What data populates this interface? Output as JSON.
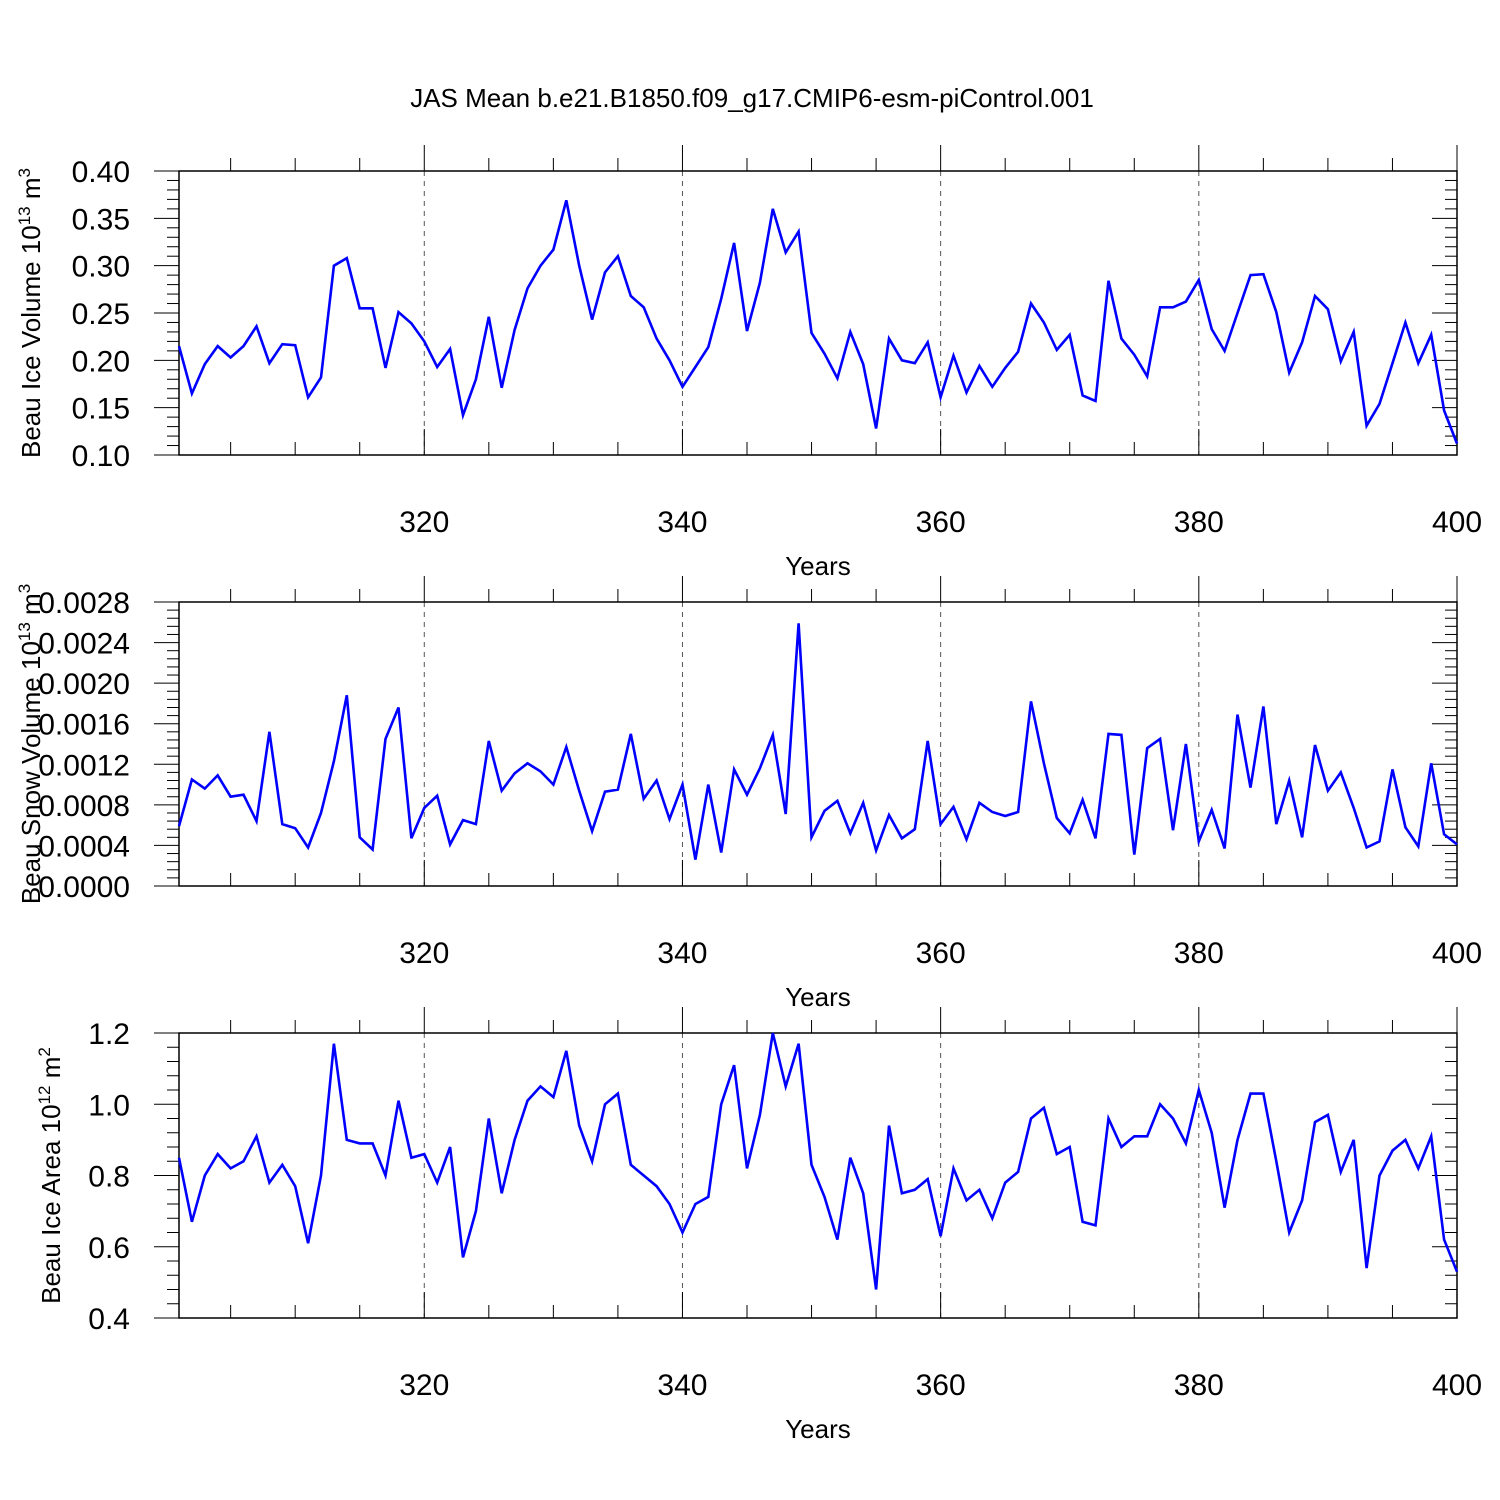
{
  "figure": {
    "title": "JAS Mean b.e21.B1850.f09_g17.CMIP6-esm-piControl.001",
    "line_color": "#0000ff",
    "grid_color": "#000000"
  },
  "chart_data": [
    {
      "type": "line",
      "title": "",
      "xlabel": "Years",
      "ylabel_main": "Beau Ice Volume 10",
      "ylabel_exp": "13",
      "ylabel_unit": "m",
      "ylabel_unit_exp": "3",
      "xlim": [
        301,
        400
      ],
      "ylim": [
        0.1,
        0.4
      ],
      "xticks": [
        320,
        340,
        360,
        380,
        400
      ],
      "yticks": [
        "0.10",
        "0.15",
        "0.20",
        "0.25",
        "0.30",
        "0.35",
        "0.40"
      ],
      "grid": "vertical dashed at major x ticks",
      "x": [
        301,
        302,
        303,
        304,
        305,
        306,
        307,
        308,
        309,
        310,
        311,
        312,
        313,
        314,
        315,
        316,
        317,
        318,
        319,
        320,
        321,
        322,
        323,
        324,
        325,
        326,
        327,
        328,
        329,
        330,
        331,
        332,
        333,
        334,
        335,
        336,
        337,
        338,
        339,
        340,
        341,
        342,
        343,
        344,
        345,
        346,
        347,
        348,
        349,
        350,
        351,
        352,
        353,
        354,
        355,
        356,
        357,
        358,
        359,
        360,
        361,
        362,
        363,
        364,
        365,
        366,
        367,
        368,
        369,
        370,
        371,
        372,
        373,
        374,
        375,
        376,
        377,
        378,
        379,
        380,
        381,
        382,
        383,
        384,
        385,
        386,
        387,
        388,
        389,
        390,
        391,
        392,
        393,
        394,
        395,
        396,
        397,
        398,
        399,
        400
      ],
      "series": [
        {
          "values": [
            0.215,
            0.165,
            0.196,
            0.215,
            0.203,
            0.215,
            0.236,
            0.197,
            0.217,
            0.216,
            0.161,
            0.182,
            0.3,
            0.308,
            0.255,
            0.255,
            0.192,
            0.251,
            0.239,
            0.22,
            0.193,
            0.212,
            0.142,
            0.18,
            0.246,
            0.171,
            0.232,
            0.276,
            0.3,
            0.317,
            0.369,
            0.3,
            0.243,
            0.293,
            0.31,
            0.268,
            0.256,
            0.223,
            0.2,
            0.172,
            0.193,
            0.214,
            0.265,
            0.324,
            0.231,
            0.282,
            0.36,
            0.314,
            0.336,
            0.229,
            0.207,
            0.181,
            0.23,
            0.196,
            0.128,
            0.223,
            0.2,
            0.197,
            0.219,
            0.161,
            0.205,
            0.166,
            0.194,
            0.172,
            0.192,
            0.209,
            0.26,
            0.24,
            0.211,
            0.227,
            0.163,
            0.157,
            0.284,
            0.223,
            0.206,
            0.183,
            0.256,
            0.256,
            0.262,
            0.285,
            0.233,
            0.21,
            0.25,
            0.29,
            0.291,
            0.251,
            0.187,
            0.219,
            0.268,
            0.254,
            0.199,
            0.23,
            0.131,
            0.154,
            0.197,
            0.24,
            0.197,
            0.227,
            0.147,
            0.112
          ]
        }
      ]
    },
    {
      "type": "line",
      "title": "",
      "xlabel": "Years",
      "ylabel_main": "Beau Snow Volume 10",
      "ylabel_exp": "13",
      "ylabel_unit": "m",
      "ylabel_unit_exp": "3",
      "xlim": [
        301,
        400
      ],
      "ylim": [
        0.0,
        0.0028
      ],
      "xticks": [
        320,
        340,
        360,
        380,
        400
      ],
      "yticks": [
        "0.0000",
        "0.0004",
        "0.0008",
        "0.0012",
        "0.0016",
        "0.0020",
        "0.0024",
        "0.0028"
      ],
      "grid": "vertical dashed at major x ticks",
      "x": [
        301,
        302,
        303,
        304,
        305,
        306,
        307,
        308,
        309,
        310,
        311,
        312,
        313,
        314,
        315,
        316,
        317,
        318,
        319,
        320,
        321,
        322,
        323,
        324,
        325,
        326,
        327,
        328,
        329,
        330,
        331,
        332,
        333,
        334,
        335,
        336,
        337,
        338,
        339,
        340,
        341,
        342,
        343,
        344,
        345,
        346,
        347,
        348,
        349,
        350,
        351,
        352,
        353,
        354,
        355,
        356,
        357,
        358,
        359,
        360,
        361,
        362,
        363,
        364,
        365,
        366,
        367,
        368,
        369,
        370,
        371,
        372,
        373,
        374,
        375,
        376,
        377,
        378,
        379,
        380,
        381,
        382,
        383,
        384,
        385,
        386,
        387,
        388,
        389,
        390,
        391,
        392,
        393,
        394,
        395,
        396,
        397,
        398,
        399,
        400
      ],
      "series": [
        {
          "values": [
            0.00059,
            0.00105,
            0.00096,
            0.00109,
            0.00088,
            0.0009,
            0.00064,
            0.00152,
            0.00061,
            0.00057,
            0.00038,
            0.00072,
            0.00123,
            0.00188,
            0.00048,
            0.00036,
            0.00145,
            0.00176,
            0.00047,
            0.00077,
            0.00089,
            0.00041,
            0.00065,
            0.00061,
            0.00143,
            0.00094,
            0.00111,
            0.00121,
            0.00113,
            0.001,
            0.00137,
            0.00094,
            0.00054,
            0.00093,
            0.00095,
            0.0015,
            0.00086,
            0.00104,
            0.00066,
            0.001,
            0.00026,
            0.001,
            0.00033,
            0.00115,
            0.0009,
            0.00116,
            0.00149,
            0.00071,
            0.00259,
            0.00048,
            0.00074,
            0.00084,
            0.00052,
            0.00082,
            0.00035,
            0.0007,
            0.00047,
            0.00056,
            0.00143,
            0.00061,
            0.00078,
            0.00046,
            0.00082,
            0.00073,
            0.00069,
            0.00073,
            0.00182,
            0.00121,
            0.00067,
            0.00052,
            0.00085,
            0.00047,
            0.0015,
            0.00149,
            0.00031,
            0.00136,
            0.00145,
            0.00055,
            0.0014,
            0.00044,
            0.00075,
            0.00037,
            0.00169,
            0.00097,
            0.00177,
            0.00061,
            0.00104,
            0.00048,
            0.00139,
            0.00094,
            0.00112,
            0.00077,
            0.00038,
            0.00044,
            0.00115,
            0.00058,
            0.00039,
            0.00121,
            0.00051,
            0.00041
          ]
        }
      ]
    },
    {
      "type": "line",
      "title": "",
      "xlabel": "Years",
      "ylabel_main": "Beau Ice Area 10",
      "ylabel_exp": "12",
      "ylabel_unit": "m",
      "ylabel_unit_exp": "2",
      "xlim": [
        301,
        400
      ],
      "ylim": [
        0.4,
        1.2
      ],
      "xticks": [
        320,
        340,
        360,
        380,
        400
      ],
      "yticks": [
        "0.4",
        "0.6",
        "0.8",
        "1.0",
        "1.2"
      ],
      "grid": "vertical dashed at major x ticks",
      "x": [
        301,
        302,
        303,
        304,
        305,
        306,
        307,
        308,
        309,
        310,
        311,
        312,
        313,
        314,
        315,
        316,
        317,
        318,
        319,
        320,
        321,
        322,
        323,
        324,
        325,
        326,
        327,
        328,
        329,
        330,
        331,
        332,
        333,
        334,
        335,
        336,
        337,
        338,
        339,
        340,
        341,
        342,
        343,
        344,
        345,
        346,
        347,
        348,
        349,
        350,
        351,
        352,
        353,
        354,
        355,
        356,
        357,
        358,
        359,
        360,
        361,
        362,
        363,
        364,
        365,
        366,
        367,
        368,
        369,
        370,
        371,
        372,
        373,
        374,
        375,
        376,
        377,
        378,
        379,
        380,
        381,
        382,
        383,
        384,
        385,
        386,
        387,
        388,
        389,
        390,
        391,
        392,
        393,
        394,
        395,
        396,
        397,
        398,
        399,
        400
      ],
      "series": [
        {
          "values": [
            0.85,
            0.67,
            0.8,
            0.86,
            0.82,
            0.84,
            0.91,
            0.78,
            0.83,
            0.77,
            0.61,
            0.8,
            1.17,
            0.9,
            0.89,
            0.89,
            0.8,
            1.01,
            0.85,
            0.86,
            0.78,
            0.88,
            0.57,
            0.7,
            0.96,
            0.75,
            0.9,
            1.01,
            1.05,
            1.02,
            1.15,
            0.94,
            0.84,
            1.0,
            1.03,
            0.83,
            0.8,
            0.77,
            0.72,
            0.64,
            0.72,
            0.74,
            1.0,
            1.11,
            0.82,
            0.97,
            1.2,
            1.05,
            1.17,
            0.83,
            0.74,
            0.62,
            0.85,
            0.75,
            0.48,
            0.94,
            0.75,
            0.76,
            0.79,
            0.63,
            0.82,
            0.73,
            0.76,
            0.68,
            0.78,
            0.81,
            0.96,
            0.99,
            0.86,
            0.88,
            0.67,
            0.66,
            0.96,
            0.88,
            0.91,
            0.91,
            1.0,
            0.96,
            0.89,
            1.04,
            0.92,
            0.71,
            0.9,
            1.03,
            1.03,
            0.84,
            0.64,
            0.73,
            0.95,
            0.97,
            0.81,
            0.9,
            0.54,
            0.8,
            0.87,
            0.9,
            0.82,
            0.91,
            0.62,
            0.53
          ]
        }
      ]
    }
  ]
}
